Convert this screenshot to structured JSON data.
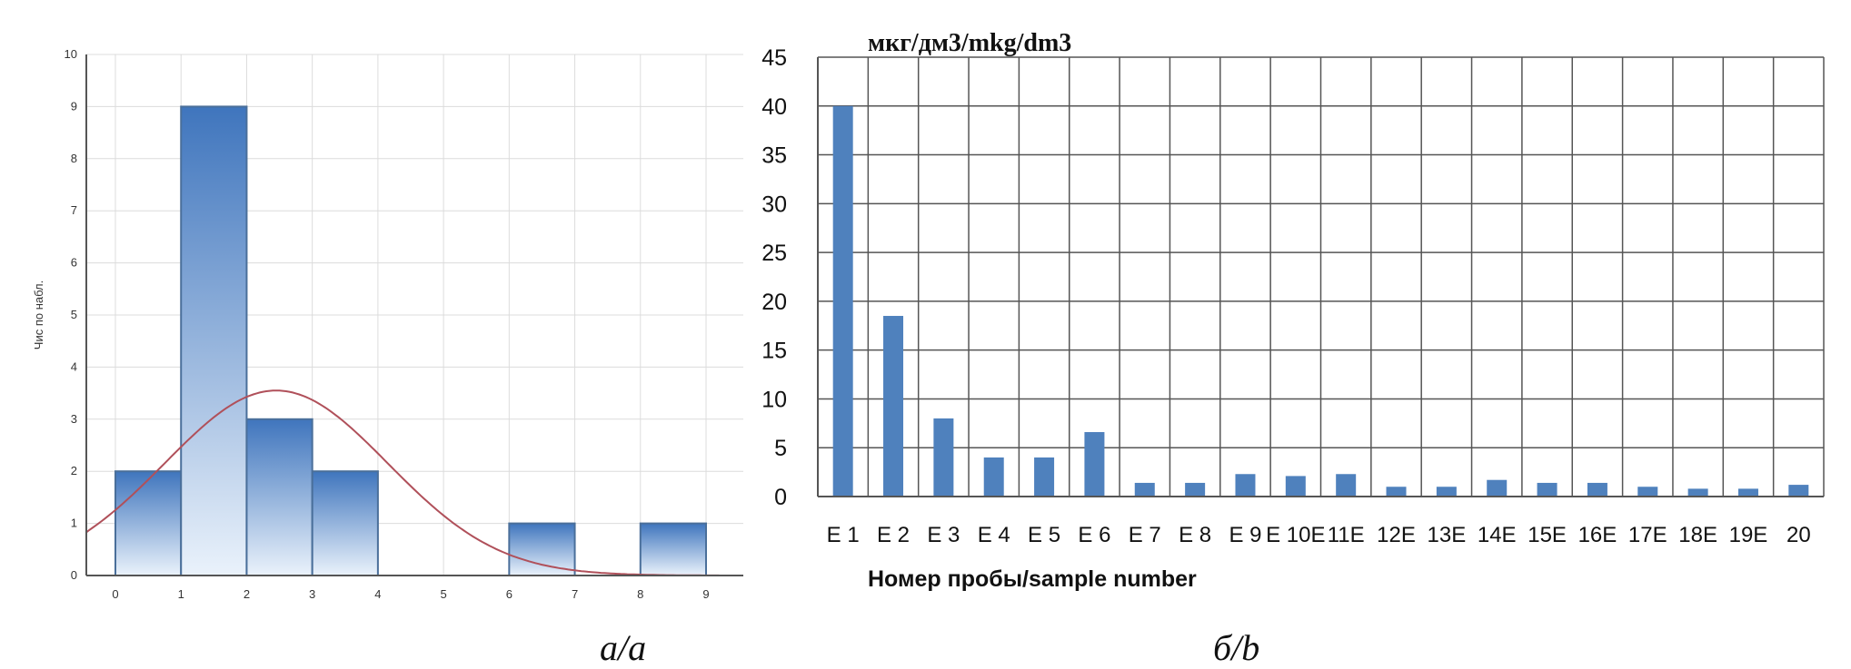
{
  "captions": {
    "a": "а/a",
    "b": "б/b"
  },
  "chart_data": [
    {
      "type": "bar",
      "subtype": "histogram",
      "ylabel": "Чис по набл.",
      "xlim": [
        0,
        9
      ],
      "ylim": [
        0,
        10
      ],
      "x_ticks": [
        "0",
        "1",
        "2",
        "3",
        "4",
        "5",
        "6",
        "7",
        "8",
        "9"
      ],
      "y_ticks": [
        "0",
        "1",
        "2",
        "3",
        "4",
        "5",
        "6",
        "7",
        "8",
        "9",
        "10"
      ],
      "bins": [
        {
          "from": 0,
          "to": 1,
          "count": 2
        },
        {
          "from": 1,
          "to": 2,
          "count": 9
        },
        {
          "from": 2,
          "to": 3,
          "count": 3
        },
        {
          "from": 3,
          "to": 4,
          "count": 2
        },
        {
          "from": 6,
          "to": 7,
          "count": 1
        },
        {
          "from": 8,
          "to": 9,
          "count": 1
        }
      ],
      "normal_curve": {
        "mean": 2.45,
        "peak": 3.55,
        "sd": 1.7
      },
      "grid": true,
      "colors": {
        "bar_top": "#3f75bd",
        "bar_bottom": "#eaf2fb",
        "bar_border": "#4a6f9a",
        "curve": "#b0505a"
      }
    },
    {
      "type": "bar",
      "title": "мкг/дм3/mkg/dm3",
      "xlabel": "Номер пробы/sample number",
      "categories": [
        "E 1",
        "E 2",
        "E 3",
        "E 4",
        "E 5",
        "E 6",
        "E 7",
        "E 8",
        "E 9",
        "E 10",
        "E 11",
        "E 12",
        "E 13",
        "E 14",
        "E 15",
        "E 16",
        "E 17",
        "E 18",
        "E 19",
        "E 20"
      ],
      "tick_labels": [
        "E 1",
        "E 2",
        "E 3",
        "E 4",
        "E 5",
        "E 6",
        "E 7",
        "E 8",
        "E 9",
        "E 10E",
        "11E",
        "12E",
        "13E",
        "14E",
        "15E",
        "16E",
        "17E",
        "18E",
        "19E",
        "20"
      ],
      "values": [
        40,
        18.5,
        8,
        4,
        4,
        6.6,
        1.4,
        1.4,
        2.3,
        2.1,
        2.3,
        1.0,
        1.0,
        1.7,
        1.4,
        1.4,
        1.0,
        0.8,
        0.8,
        1.2
      ],
      "ylim": [
        0,
        45
      ],
      "y_ticks": [
        "0",
        "5",
        "10",
        "15",
        "20",
        "25",
        "30",
        "35",
        "40",
        "45"
      ],
      "grid": true,
      "colors": {
        "bar": "#4f81bd"
      }
    }
  ]
}
